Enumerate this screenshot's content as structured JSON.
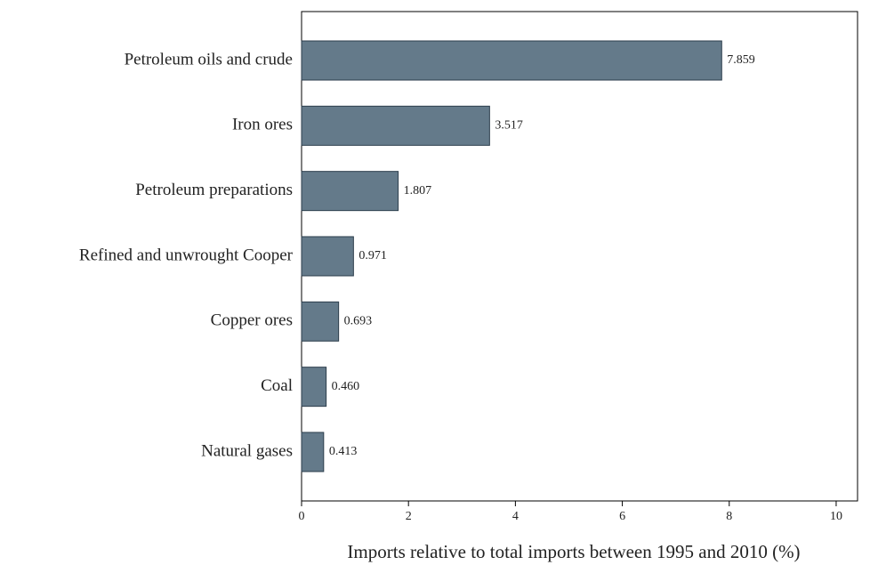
{
  "chart_data": {
    "type": "bar",
    "orientation": "horizontal",
    "x_label": "Imports relative to total imports between 1995 and 2010 (%)",
    "categories": [
      "Petroleum oils and crude",
      "Iron ores",
      "Petroleum preparations",
      "Refined and unwrought Cooper",
      "Copper ores",
      "Coal",
      "Natural gases"
    ],
    "values": [
      7.859,
      3.517,
      1.807,
      0.971,
      0.693,
      0.46,
      0.413
    ],
    "value_labels": [
      "7.859",
      "3.517",
      "1.807",
      "0.971",
      "0.693",
      "0.460",
      "0.413"
    ],
    "color": "#647a8a",
    "xlim": [
      0,
      10.4
    ],
    "xticks": [
      0,
      2,
      4,
      6,
      8,
      10
    ],
    "grid": false
  }
}
